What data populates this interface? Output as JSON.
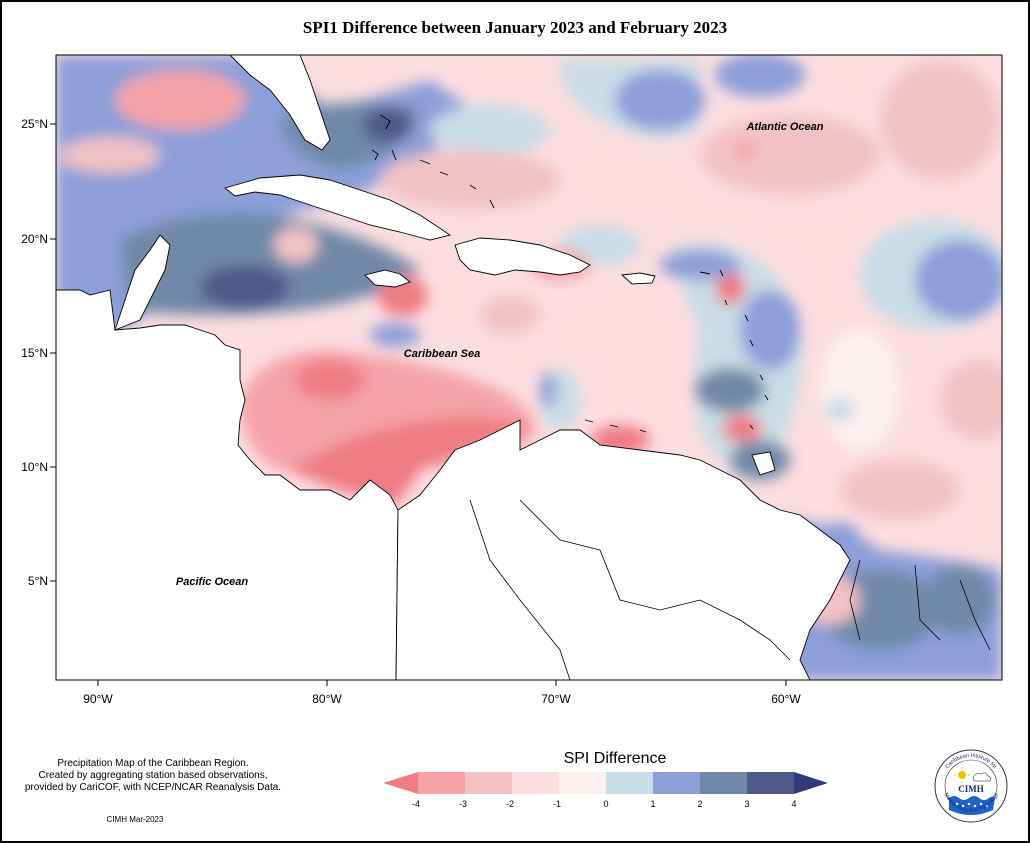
{
  "title": "SPI1 Difference between January 2023 and February 2023",
  "map": {
    "lat_labels": [
      "25°N",
      "20°N",
      "15°N",
      "10°N",
      "5°N"
    ],
    "lon_labels": [
      "90°W",
      "80°W",
      "70°W",
      "60°W"
    ],
    "regions": [
      {
        "name": "Atlantic Ocean",
        "label": "Atlantic Ocean"
      },
      {
        "name": "Caribbean Sea",
        "label": "Caribbean Sea"
      },
      {
        "name": "Pacific Ocean",
        "label": "Pacific Ocean"
      }
    ],
    "colors": {
      "lt_-4": "#f07c84",
      "-4_-3": "#f5a3a7",
      "-3_-2": "#f2c2c5",
      "-2_-1": "#fcdde0",
      "-1_0": "#fdf0f0",
      "0_1": "#c8dde6",
      "1_2": "#8c9fd9",
      "2_3": "#7089a8",
      "3_4": "#4d5a8a",
      "gt_4": "#2f3a7a",
      "land": "#ffffff"
    }
  },
  "legend": {
    "title": "SPI Difference",
    "ticks": [
      "-4",
      "-3",
      "-2",
      "-1",
      "0",
      "1",
      "2",
      "3",
      "4"
    ]
  },
  "footnote": {
    "line1": "Precipitation Map of the Caribbean Region.",
    "line2": "Created by aggregating station based observations,",
    "line3": "provided by CariCOF, with NCEP/NCAR Reanalysis Data."
  },
  "credit": "CIMH Mar-2023",
  "logo": {
    "top_text": "Caribbean Institute for",
    "bottom_text": "Meteorology and Hydrology",
    "acronym": "CIMH"
  }
}
